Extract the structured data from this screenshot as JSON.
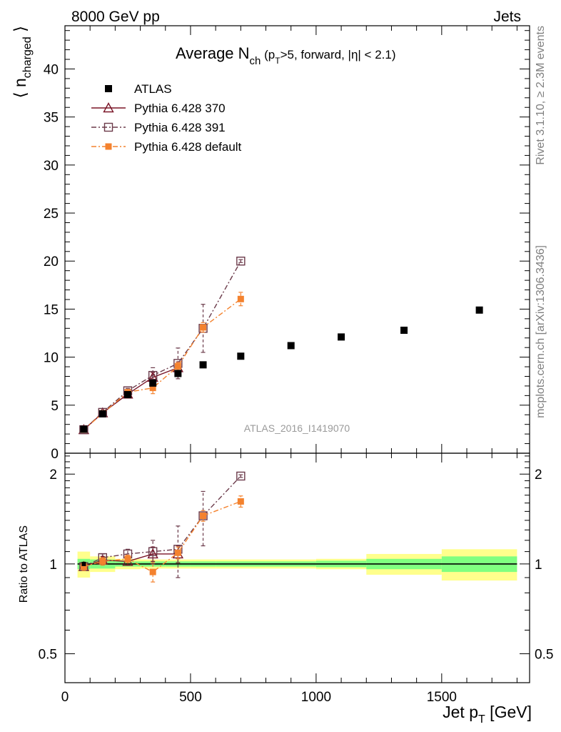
{
  "header": {
    "left": "8000 GeV pp",
    "right": "Jets"
  },
  "side": {
    "rivet": "Rivet 3.1.10, ≥ 2.3M events",
    "mcplots": "mcplots.cern.ch [arXiv:1306.3436]"
  },
  "chart_data": {
    "type": "line",
    "title": {
      "main": "Average N",
      "sub": "ch",
      "tail": " (p",
      "tail_sub": "T",
      "tail_rest": ">5, forward, |η| < 2.1)"
    },
    "ylabel": {
      "main": "⟨ n",
      "sub": "charged",
      "close": " ⟩"
    },
    "ratio_ylabel": "Ratio to ATLAS",
    "xlabel": {
      "main": "Jet p",
      "sub": "T",
      "unit": " [GeV]"
    },
    "analysis_tag": "ATLAS_2016_I1419070",
    "xlim": [
      0,
      1850
    ],
    "ylim": [
      0,
      44.5
    ],
    "ratio_ylim": [
      0.4,
      2.35
    ],
    "ratio_log": true,
    "x_ticks": [
      0,
      500,
      1000,
      1500
    ],
    "y_ticks": [
      0,
      5,
      10,
      15,
      20,
      25,
      30,
      35,
      40
    ],
    "ratio_ticks": [
      0.5,
      1,
      2
    ],
    "ratio_tick_labels": [
      "0.5",
      "1",
      "2"
    ],
    "legend_position": "top-left",
    "data": {
      "name": "ATLAS",
      "color": "#000000",
      "x": [
        75,
        150,
        250,
        350,
        450,
        550,
        700,
        900,
        1100,
        1350,
        1650
      ],
      "y": [
        2.5,
        4.1,
        6.1,
        7.3,
        8.3,
        9.2,
        10.1,
        11.2,
        12.1,
        12.8,
        14.9
      ],
      "xlo": [
        50,
        100,
        200,
        300,
        400,
        500,
        600,
        800,
        1000,
        1200,
        1500
      ],
      "xhi": [
        100,
        200,
        300,
        400,
        500,
        600,
        800,
        1000,
        1200,
        1500,
        1800
      ],
      "band_inner": [
        0.04,
        0.035,
        0.02,
        0.02,
        0.02,
        0.02,
        0.02,
        0.02,
        0.025,
        0.04,
        0.06
      ],
      "band_outer": [
        0.1,
        0.06,
        0.04,
        0.035,
        0.035,
        0.035,
        0.035,
        0.035,
        0.04,
        0.08,
        0.12
      ]
    },
    "series": [
      {
        "name": "Pythia 6.428 370",
        "color": "#7a1527",
        "style": "solid",
        "marker": "triangle",
        "x": [
          75,
          150,
          250,
          350,
          450
        ],
        "y": [
          2.45,
          4.2,
          6.15,
          7.9,
          8.9
        ],
        "err": [
          0.1,
          0.15,
          0.2,
          0.5,
          0.6
        ],
        "ratio": [
          0.98,
          1.03,
          1.02,
          1.08,
          1.08
        ],
        "ratio_err": [
          0.03,
          0.03,
          0.03,
          0.06,
          0.07
        ]
      },
      {
        "name": "Pythia 6.428 391",
        "color": "#6b3a4a",
        "style": "dashdot",
        "marker": "square-open",
        "x": [
          75,
          150,
          250,
          350,
          450,
          550,
          700
        ],
        "y": [
          2.45,
          4.25,
          6.5,
          8.1,
          9.35,
          13.0,
          20.0
        ],
        "err": [
          0.1,
          0.15,
          0.25,
          0.8,
          1.6,
          2.5,
          0.15
        ],
        "ratio": [
          0.98,
          1.05,
          1.08,
          1.1,
          1.12,
          1.45,
          1.97
        ],
        "ratio_err": [
          0.03,
          0.03,
          0.04,
          0.1,
          0.22,
          0.3,
          0.02
        ]
      },
      {
        "name": "Pythia 6.428 default",
        "color": "#f4822e",
        "style": "dashdot",
        "marker": "square-filled",
        "x": [
          75,
          150,
          250,
          350,
          450,
          550,
          700
        ],
        "y": [
          2.45,
          4.15,
          6.35,
          6.8,
          9.05,
          13.1,
          16.05
        ],
        "err": [
          0.1,
          0.15,
          0.2,
          0.6,
          0.4,
          0.5,
          0.7
        ],
        "ratio": [
          0.98,
          1.02,
          1.04,
          0.94,
          1.09,
          1.45,
          1.62
        ],
        "ratio_err": [
          0.03,
          0.03,
          0.03,
          0.07,
          0.05,
          0.06,
          0.07
        ]
      }
    ]
  }
}
